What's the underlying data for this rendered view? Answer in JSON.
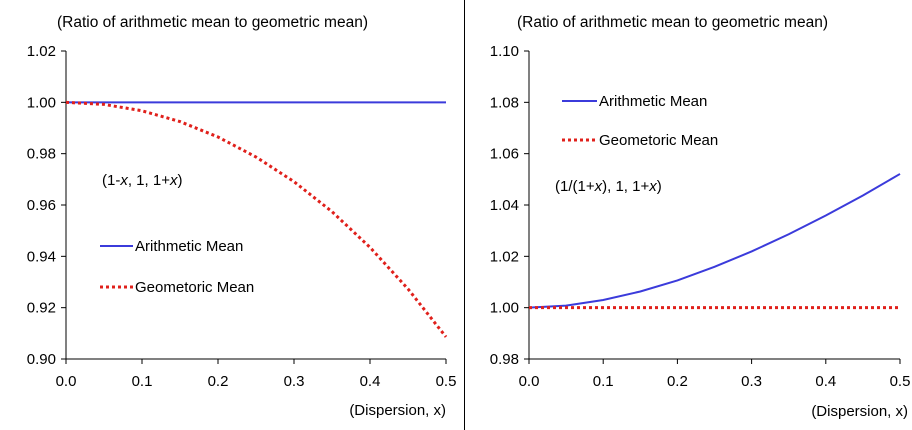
{
  "chart_data": [
    {
      "type": "line",
      "title": "(Ratio of arithmetic mean to geometric mean)",
      "xlabel": "(Dispersion, x)",
      "ylabel": "",
      "xlim": [
        0,
        0.5
      ],
      "ylim": [
        0.9,
        1.02
      ],
      "x_ticks": [
        "0.0",
        "0.1",
        "0.2",
        "0.3",
        "0.4",
        "0.5"
      ],
      "y_ticks": [
        "1.02",
        "1.00",
        "0.98",
        "0.96",
        "0.94",
        "0.92",
        "0.90"
      ],
      "annotation": "(1-x, 1, 1+x)",
      "legend_position": "left-middle",
      "grid": false,
      "series": [
        {
          "name": "Arithmetic Mean",
          "color": "#3b3bdb",
          "style": "solid",
          "x": [
            0.0,
            0.05,
            0.1,
            0.15,
            0.2,
            0.25,
            0.3,
            0.35,
            0.4,
            0.45,
            0.5
          ],
          "y": [
            1.0,
            1.0,
            1.0,
            1.0,
            1.0,
            1.0,
            1.0,
            1.0,
            1.0,
            1.0,
            1.0
          ]
        },
        {
          "name": "Geometoric Mean",
          "color": "#e0201b",
          "style": "dotted",
          "x": [
            0.0,
            0.05,
            0.1,
            0.15,
            0.2,
            0.25,
            0.3,
            0.35,
            0.4,
            0.45,
            0.5
          ],
          "y": [
            1.0,
            0.9992,
            0.9967,
            0.9925,
            0.9865,
            0.9787,
            0.9691,
            0.9574,
            0.9435,
            0.9273,
            0.9086
          ]
        }
      ]
    },
    {
      "type": "line",
      "title": "(Ratio of arithmetic mean to geometric mean)",
      "xlabel": "(Dispersion, x)",
      "ylabel": "",
      "xlim": [
        0,
        0.5
      ],
      "ylim": [
        0.98,
        1.1
      ],
      "x_ticks": [
        "0.0",
        "0.1",
        "0.2",
        "0.3",
        "0.4",
        "0.5"
      ],
      "y_ticks": [
        "1.10",
        "1.08",
        "1.06",
        "1.04",
        "1.02",
        "1.00",
        "0.98"
      ],
      "annotation": "(1/(1+x), 1, 1+x)",
      "legend_position": "top-left",
      "grid": false,
      "series": [
        {
          "name": "Arithmetic Mean",
          "color": "#3b3bdb",
          "style": "solid",
          "x": [
            0.0,
            0.05,
            0.1,
            0.15,
            0.2,
            0.25,
            0.3,
            0.35,
            0.4,
            0.45,
            0.5
          ],
          "y": [
            1.0,
            1.0008,
            1.003,
            1.0063,
            1.0106,
            1.0159,
            1.0219,
            1.0286,
            1.0359,
            1.0437,
            1.0521
          ]
        },
        {
          "name": "Geometoric Mean",
          "color": "#e0201b",
          "style": "dotted",
          "x": [
            0.0,
            0.05,
            0.1,
            0.15,
            0.2,
            0.25,
            0.3,
            0.35,
            0.4,
            0.45,
            0.5
          ],
          "y": [
            1.0,
            1.0,
            1.0,
            1.0,
            1.0,
            1.0,
            1.0,
            1.0,
            1.0,
            1.0,
            1.0
          ]
        }
      ]
    }
  ]
}
